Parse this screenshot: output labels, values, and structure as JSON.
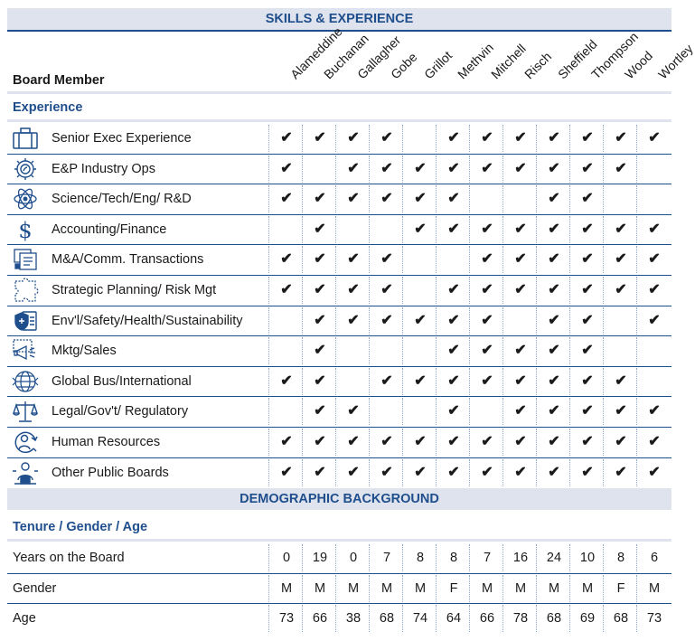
{
  "sections": {
    "skills_title": "SKILLS & EXPERIENCE",
    "demographic_title": "DEMOGRAPHIC BACKGROUND",
    "experience_label": "Experience",
    "tenure_label": "Tenure / Gender / Age"
  },
  "column_header_label": "Board Member",
  "members": [
    "Alameddine",
    "Buchanan",
    "Gallagher",
    "Gobe",
    "Grillot",
    "Methvin",
    "Mitchell",
    "Risch",
    "Sheffield",
    "Thompson",
    "Wood",
    "Wortley"
  ],
  "check_symbol": "✔",
  "skills": [
    {
      "label": "Senior Exec Experience",
      "icon": "briefcase-icon",
      "checks": [
        1,
        1,
        1,
        1,
        0,
        1,
        1,
        1,
        1,
        1,
        1,
        1
      ]
    },
    {
      "label": "E&P Industry Ops",
      "icon": "gear-leaf-icon",
      "checks": [
        1,
        0,
        1,
        1,
        1,
        1,
        1,
        1,
        1,
        1,
        1,
        0
      ]
    },
    {
      "label": "Science/Tech/Eng/ R&D",
      "icon": "atom-icon",
      "checks": [
        1,
        1,
        1,
        1,
        1,
        1,
        0,
        0,
        1,
        1,
        0,
        0
      ]
    },
    {
      "label": "Accounting/Finance",
      "icon": "dollar-icon",
      "checks": [
        0,
        1,
        0,
        0,
        1,
        1,
        1,
        1,
        1,
        1,
        1,
        1
      ]
    },
    {
      "label": "M&A/Comm. Transactions",
      "icon": "documents-icon",
      "checks": [
        1,
        1,
        1,
        1,
        0,
        0,
        1,
        1,
        1,
        1,
        1,
        1
      ]
    },
    {
      "label": "Strategic Planning/ Risk Mgt",
      "icon": "puzzle-icon",
      "checks": [
        1,
        1,
        1,
        1,
        0,
        1,
        1,
        1,
        1,
        1,
        1,
        1
      ]
    },
    {
      "label": "Env'l/Safety/Health/Sustainability",
      "icon": "shield-clipboard-icon",
      "checks": [
        0,
        1,
        1,
        1,
        1,
        1,
        1,
        0,
        1,
        1,
        0,
        1
      ]
    },
    {
      "label": "Mktg/Sales",
      "icon": "megaphone-icon",
      "checks": [
        0,
        1,
        0,
        0,
        0,
        1,
        1,
        1,
        1,
        1,
        0,
        0
      ]
    },
    {
      "label": "Global Bus/International",
      "icon": "globe-icon",
      "checks": [
        1,
        1,
        0,
        1,
        1,
        1,
        1,
        1,
        1,
        1,
        1,
        0
      ]
    },
    {
      "label": "Legal/Gov't/ Regulatory",
      "icon": "scales-icon",
      "checks": [
        0,
        1,
        1,
        0,
        0,
        1,
        0,
        1,
        1,
        1,
        1,
        1
      ]
    },
    {
      "label": "Human Resources",
      "icon": "person-cycle-icon",
      "checks": [
        1,
        1,
        1,
        1,
        1,
        1,
        1,
        1,
        1,
        1,
        1,
        1
      ]
    },
    {
      "label": "Other Public Boards",
      "icon": "person-podium-icon",
      "checks": [
        1,
        1,
        1,
        1,
        1,
        1,
        1,
        1,
        1,
        1,
        1,
        1
      ]
    }
  ],
  "demographics": [
    {
      "label": "Years on the Board",
      "values": [
        "0",
        "19",
        "0",
        "7",
        "8",
        "8",
        "7",
        "16",
        "24",
        "10",
        "8",
        "6"
      ]
    },
    {
      "label": "Gender",
      "values": [
        "M",
        "M",
        "M",
        "M",
        "M",
        "F",
        "M",
        "M",
        "M",
        "M",
        "F",
        "M"
      ]
    },
    {
      "label": "Age",
      "values": [
        "73",
        "66",
        "38",
        "68",
        "74",
        "64",
        "66",
        "78",
        "68",
        "69",
        "68",
        "73"
      ]
    }
  ],
  "colors": {
    "accent": "#1f4e8c",
    "banner_bg": "#dfe3ee",
    "rule": "#b3c2d9"
  }
}
